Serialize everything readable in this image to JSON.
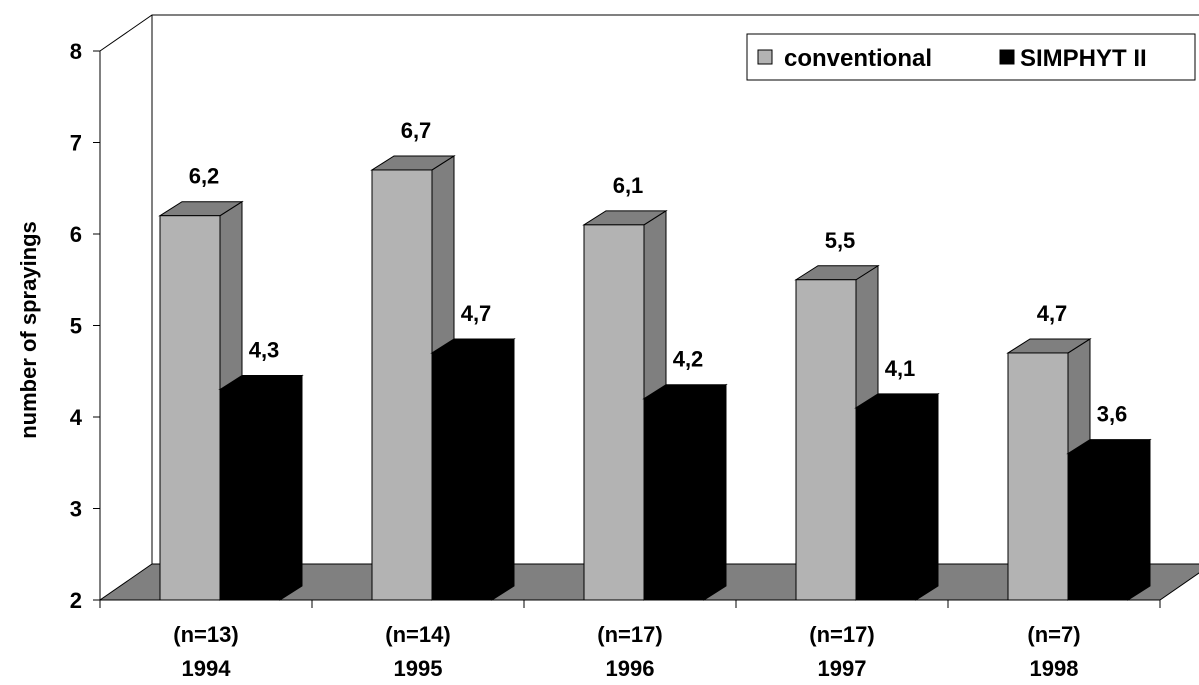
{
  "chart_data": {
    "type": "bar",
    "categories": [
      "1994",
      "1995",
      "1996",
      "1997",
      "1998"
    ],
    "category_sublabels": [
      "(n=13)",
      "(n=14)",
      "(n=17)",
      "(n=17)",
      "(n=7)"
    ],
    "series": [
      {
        "name": "conventional",
        "values": [
          6.2,
          6.7,
          6.1,
          5.5,
          4.7
        ],
        "labels": [
          "6,2",
          "6,7",
          "6,1",
          "5,5",
          "4,7"
        ],
        "color": "#b3b3b3",
        "side_color": "#7f7f7f"
      },
      {
        "name": "SIMPHYT II",
        "values": [
          4.3,
          4.7,
          4.2,
          4.1,
          3.6
        ],
        "labels": [
          "4,3",
          "4,7",
          "4,2",
          "4,1",
          "3,6"
        ],
        "color": "#000000",
        "side_color": "#000000"
      }
    ],
    "ylabel": "number of sprayings",
    "xlabel": "",
    "ylim": [
      2,
      8
    ],
    "yticks": [
      "2",
      "3",
      "4",
      "5",
      "6",
      "7",
      "8"
    ],
    "legend_position": "top-right",
    "three_d": true,
    "floor_color": "#808080"
  }
}
